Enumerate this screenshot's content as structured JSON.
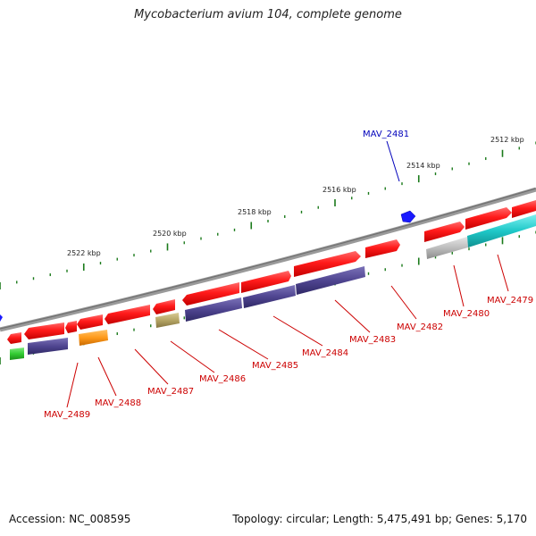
{
  "title": "Mycobacterium avium 104, complete genome",
  "accession": "Accession: NC_008595",
  "topology": "Topology: circular; Length: 5,475,491 bp; Genes: 5,170",
  "tick_labels": [
    "2512 kbp",
    "2514 kbp",
    "2516 kbp",
    "2518 kbp",
    "2520 kbp",
    "2522 kbp"
  ],
  "gene_labels": {
    "MAV_2481": "MAV_2481",
    "MAV_2479": "MAV_2479",
    "MAV_2480": "MAV_2480",
    "MAV_2482": "MAV_2482",
    "MAV_2483": "MAV_2483",
    "MAV_2484": "MAV_2484",
    "MAV_2485": "MAV_2485",
    "MAV_2486": "MAV_2486",
    "MAV_2487": "MAV_2487",
    "MAV_2488": "MAV_2488",
    "MAV_2489": "MAV_2489"
  },
  "colors": {
    "cds": "#ff1a1a",
    "blast_purple": "#4f4590",
    "blast_cyan": "#1ec8c8",
    "blast_grey": "#bdbdbd",
    "blast_orange": "#ff9a1a",
    "blast_khaki": "#b5a565",
    "blast_green": "#33cc33",
    "backbone": "#888888",
    "ticks": "#1a7a1a",
    "label_red": "#cc0000",
    "label_blue": "#0000bb"
  }
}
